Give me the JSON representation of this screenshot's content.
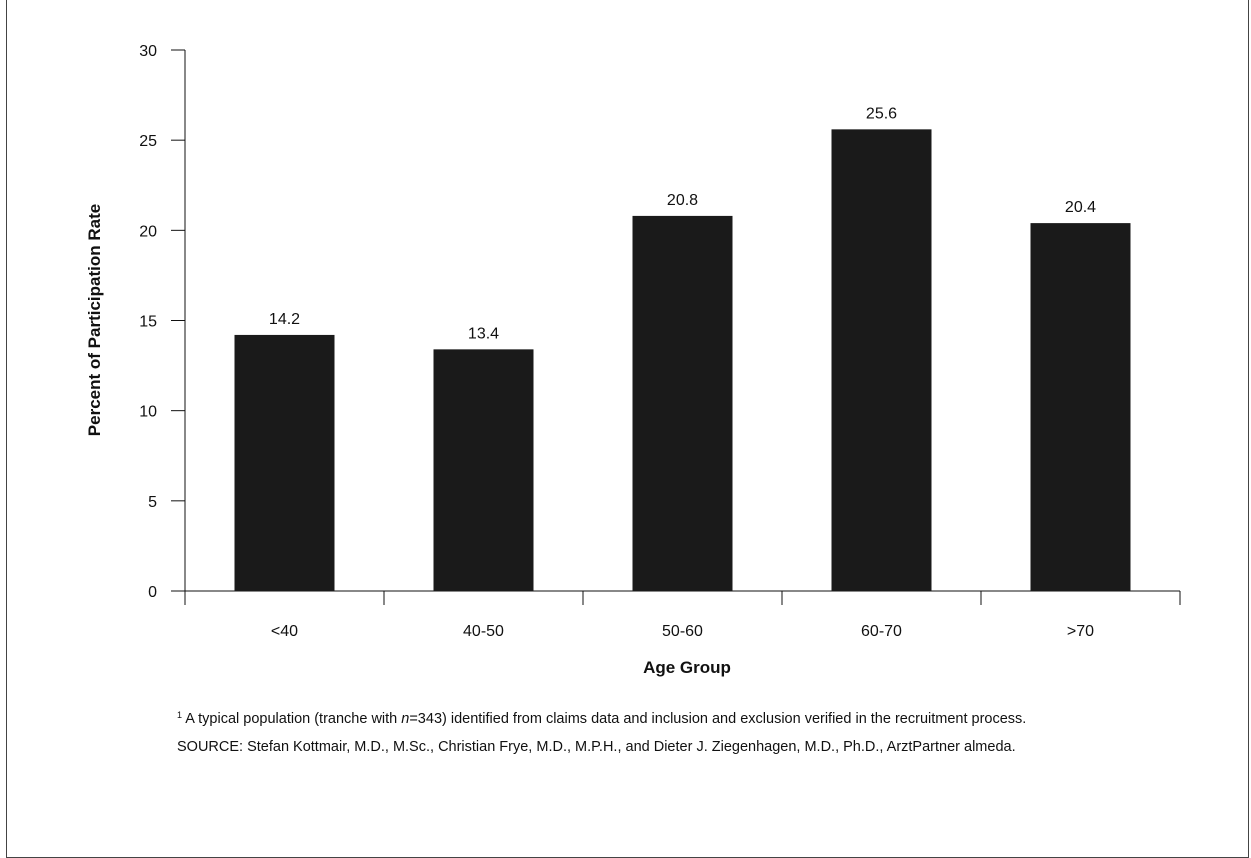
{
  "title": "",
  "chart_data": {
    "type": "bar",
    "categories": [
      "<40",
      "40-50",
      "50-60",
      "60-70",
      ">70"
    ],
    "values": [
      14.2,
      13.4,
      20.8,
      25.6,
      20.4
    ],
    "data_labels": [
      "14.2",
      "13.4",
      "20.8",
      "25.6",
      "20.4"
    ],
    "xlabel": "Age Group",
    "ylabel": "Percent of Participation Rate",
    "ylim": [
      0,
      30
    ],
    "yticks": [
      0,
      5,
      10,
      15,
      20,
      25,
      30
    ],
    "grid": false,
    "bar_color": "#1a1a1a"
  },
  "notes": {
    "footnote_marker": "1",
    "footnote_before": " A typical population (tranche with ",
    "footnote_n": "n",
    "footnote_after": "=343) identified from claims data and inclusion and exclusion verified in the recruitment process.",
    "source": "SOURCE: Stefan Kottmair, M.D., M.Sc., Christian Frye, M.D., M.P.H., and Dieter J. Ziegenhagen, M.D., Ph.D., ArztPartner almeda."
  }
}
